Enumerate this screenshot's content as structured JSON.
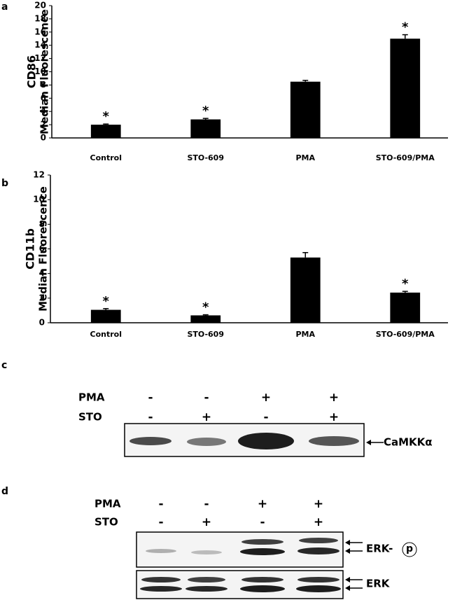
{
  "chart_data": [
    {
      "type": "bar",
      "panel": "a",
      "ylabel": [
        "CD86",
        "Median Fluorescence"
      ],
      "categories": [
        "Control",
        "STO-609",
        "PMA",
        "STO-609/PMA"
      ],
      "values": [
        2.0,
        2.8,
        8.5,
        15.0
      ],
      "errors": [
        0.1,
        0.15,
        0.2,
        0.6
      ],
      "annotations": [
        "*",
        "*",
        null,
        "*"
      ],
      "color": "#000000",
      "ylim": [
        0,
        20
      ],
      "yticks": [
        0,
        2,
        4,
        6,
        8,
        10,
        12,
        14,
        16,
        18,
        20
      ]
    },
    {
      "type": "bar",
      "panel": "b",
      "ylabel": [
        "CD11b",
        "Median Fluorescence"
      ],
      "categories": [
        "Control",
        "STO-609",
        "PMA",
        "STO-609/PMA"
      ],
      "values": [
        1.05,
        0.6,
        5.3,
        2.45
      ],
      "errors": [
        0.1,
        0.05,
        0.4,
        0.1
      ],
      "annotations": [
        "*",
        "*",
        null,
        "*"
      ],
      "color": "#000000",
      "ylim": [
        0,
        12
      ],
      "yticks": [
        0,
        2,
        4,
        6,
        8,
        10,
        12
      ]
    }
  ],
  "blots": [
    {
      "panel": "c",
      "rows": [
        {
          "label": "PMA",
          "signs": [
            "-",
            "-",
            "+",
            "+"
          ]
        },
        {
          "label": "STO",
          "signs": [
            "-",
            "+",
            "-",
            "+"
          ]
        }
      ],
      "bands": [
        {
          "label": "CaMKKα"
        }
      ]
    },
    {
      "panel": "d",
      "rows": [
        {
          "label": "PMA",
          "signs": [
            "-",
            "-",
            "+",
            "+"
          ]
        },
        {
          "label": "STO",
          "signs": [
            "-",
            "+",
            "-",
            "+"
          ]
        }
      ],
      "bands": [
        {
          "label": "ERK-",
          "mod": "p"
        },
        {
          "label": "ERK"
        }
      ]
    }
  ]
}
